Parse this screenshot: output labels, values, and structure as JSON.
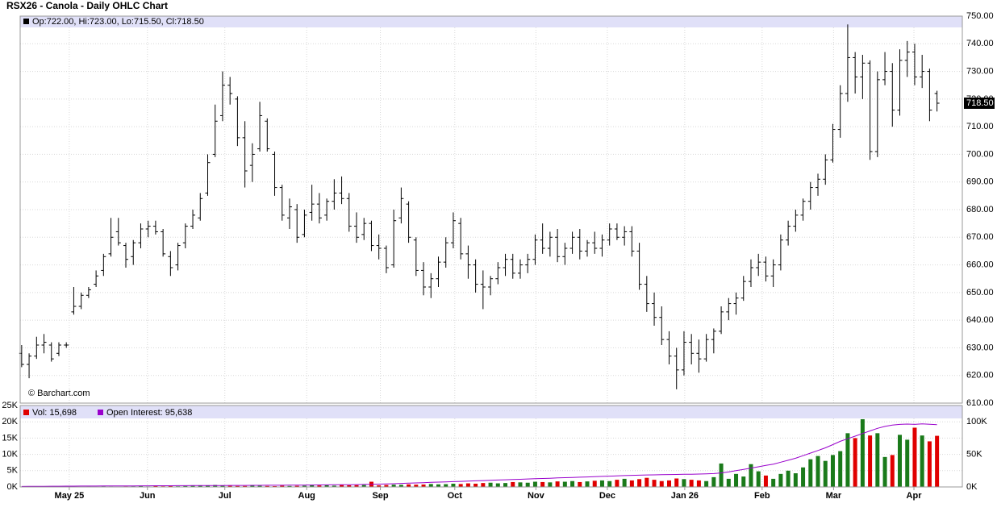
{
  "chart_data": [
    {
      "type": "ohlc",
      "title": "RSX26 - Canola - Daily OHLC Chart",
      "legend": "Op:722.00, Hi:723.00, Lo:715.50, Cl:718.50",
      "last_label": "718.50",
      "credit": "© Barchart.com",
      "color": "#000000",
      "xlim": [
        -0.2,
        126.4
      ],
      "ylim": [
        610,
        750
      ],
      "grid": true,
      "yticks": [
        {
          "value": 610,
          "label": "610.00"
        },
        {
          "value": 620,
          "label": "620.00"
        },
        {
          "value": 630,
          "label": "630.00"
        },
        {
          "value": 640,
          "label": "640.00"
        },
        {
          "value": 650,
          "label": "650.00"
        },
        {
          "value": 660,
          "label": "660.00"
        },
        {
          "value": 670,
          "label": "670.00"
        },
        {
          "value": 680,
          "label": "680.00"
        },
        {
          "value": 690,
          "label": "690.00"
        },
        {
          "value": 700,
          "label": "700.00"
        },
        {
          "value": 710,
          "label": "710.00"
        },
        {
          "value": 720,
          "label": "720.00"
        },
        {
          "value": 730,
          "label": "730.00"
        },
        {
          "value": 740,
          "label": "740.00"
        },
        {
          "value": 750,
          "label": "750.00"
        }
      ],
      "ohlc": [
        [
          628,
          631,
          623,
          624
        ],
        [
          624,
          628,
          619,
          627
        ],
        [
          627,
          634,
          626,
          631
        ],
        [
          631,
          635,
          628,
          632
        ],
        [
          631,
          632,
          625,
          626
        ],
        [
          628,
          632,
          627,
          631
        ],
        [
          631,
          632,
          630,
          631
        ],
        [
          643,
          652,
          642,
          645
        ],
        [
          645,
          650,
          644,
          649
        ],
        [
          649,
          652,
          648,
          651
        ],
        [
          653,
          658,
          652,
          656
        ],
        [
          658,
          664,
          656,
          663
        ],
        [
          664,
          677,
          663,
          670
        ],
        [
          672,
          677,
          667,
          668
        ],
        [
          667,
          668,
          659,
          662
        ],
        [
          663,
          669,
          660,
          668
        ],
        [
          668,
          675,
          666,
          673
        ],
        [
          673,
          676,
          670,
          674
        ],
        [
          674,
          676,
          671,
          672
        ],
        [
          672,
          673,
          663,
          664
        ],
        [
          663,
          665,
          656,
          659
        ],
        [
          660,
          668,
          658,
          667
        ],
        [
          668,
          675,
          666,
          674
        ],
        [
          674,
          680,
          673,
          678
        ],
        [
          677,
          686,
          676,
          684
        ],
        [
          686,
          700,
          685,
          697
        ],
        [
          700,
          718,
          699,
          712
        ],
        [
          714,
          730,
          712,
          725
        ],
        [
          725,
          728,
          718,
          722
        ],
        [
          720,
          721,
          703,
          706
        ],
        [
          706,
          712,
          688,
          694
        ],
        [
          696,
          704,
          690,
          700
        ],
        [
          702,
          719,
          701,
          714
        ],
        [
          712,
          713,
          701,
          702
        ],
        [
          700,
          701,
          685,
          688
        ],
        [
          688,
          689,
          676,
          678
        ],
        [
          677,
          684,
          673,
          681
        ],
        [
          680,
          682,
          668,
          670
        ],
        [
          671,
          680,
          670,
          678
        ],
        [
          679,
          689,
          676,
          682
        ],
        [
          682,
          686,
          675,
          677
        ],
        [
          678,
          684,
          676,
          683
        ],
        [
          683,
          691,
          680,
          686
        ],
        [
          686,
          692,
          682,
          684
        ],
        [
          684,
          686,
          672,
          674
        ],
        [
          674,
          679,
          668,
          670
        ],
        [
          671,
          677,
          669,
          675
        ],
        [
          675,
          676,
          665,
          667
        ],
        [
          667,
          671,
          662,
          666
        ],
        [
          666,
          667,
          657,
          659
        ],
        [
          660,
          680,
          659,
          676
        ],
        [
          677,
          688,
          675,
          684
        ],
        [
          682,
          683,
          668,
          670
        ],
        [
          669,
          670,
          656,
          658
        ],
        [
          658,
          661,
          649,
          652
        ],
        [
          652,
          657,
          648,
          655
        ],
        [
          655,
          663,
          652,
          661
        ],
        [
          661,
          670,
          659,
          668
        ],
        [
          668,
          679,
          666,
          676
        ],
        [
          675,
          677,
          662,
          664
        ],
        [
          664,
          667,
          655,
          660
        ],
        [
          660,
          662,
          650,
          653
        ],
        [
          653,
          658,
          644,
          652
        ],
        [
          652,
          656,
          649,
          655
        ],
        [
          655,
          661,
          653,
          659
        ],
        [
          659,
          664,
          656,
          662
        ],
        [
          662,
          664,
          655,
          657
        ],
        [
          657,
          662,
          655,
          660
        ],
        [
          660,
          664,
          657,
          662
        ],
        [
          662,
          671,
          660,
          669
        ],
        [
          669,
          675,
          664,
          666
        ],
        [
          666,
          672,
          663,
          670
        ],
        [
          670,
          673,
          661,
          663
        ],
        [
          663,
          668,
          660,
          666
        ],
        [
          666,
          672,
          664,
          670
        ],
        [
          670,
          673,
          662,
          665
        ],
        [
          665,
          669,
          663,
          668
        ],
        [
          668,
          672,
          664,
          666
        ],
        [
          666,
          671,
          663,
          669
        ],
        [
          669,
          675,
          667,
          673
        ],
        [
          673,
          675,
          669,
          670
        ],
        [
          670,
          674,
          667,
          672
        ],
        [
          672,
          674,
          663,
          665
        ],
        [
          665,
          668,
          651,
          653
        ],
        [
          653,
          656,
          643,
          646
        ],
        [
          646,
          650,
          638,
          641
        ],
        [
          641,
          645,
          631,
          633
        ],
        [
          633,
          636,
          624,
          627
        ],
        [
          627,
          630,
          615,
          622
        ],
        [
          622,
          636,
          620,
          632
        ],
        [
          632,
          635,
          624,
          628
        ],
        [
          628,
          633,
          621,
          626
        ],
        [
          626,
          635,
          625,
          633
        ],
        [
          633,
          637,
          628,
          636
        ],
        [
          636,
          645,
          635,
          643
        ],
        [
          643,
          648,
          640,
          646
        ],
        [
          646,
          650,
          642,
          648
        ],
        [
          648,
          656,
          647,
          654
        ],
        [
          654,
          662,
          652,
          659
        ],
        [
          659,
          664,
          656,
          661
        ],
        [
          661,
          663,
          654,
          656
        ],
        [
          656,
          662,
          652,
          660
        ],
        [
          660,
          671,
          658,
          669
        ],
        [
          669,
          676,
          667,
          674
        ],
        [
          674,
          680,
          672,
          678
        ],
        [
          678,
          684,
          676,
          683
        ],
        [
          683,
          690,
          680,
          688
        ],
        [
          688,
          693,
          685,
          691
        ],
        [
          691,
          700,
          689,
          698
        ],
        [
          698,
          711,
          697,
          709
        ],
        [
          709,
          725,
          706,
          722
        ],
        [
          722,
          747,
          719,
          735
        ],
        [
          735,
          737,
          722,
          728
        ],
        [
          728,
          736,
          720,
          733
        ],
        [
          733,
          734,
          698,
          701
        ],
        [
          701,
          730,
          699,
          727
        ],
        [
          727,
          737,
          725,
          730
        ],
        [
          730,
          733,
          710,
          716
        ],
        [
          716,
          738,
          714,
          734
        ],
        [
          734,
          741,
          728,
          737
        ],
        [
          737,
          740,
          725,
          728
        ],
        [
          728,
          736,
          724,
          730
        ],
        [
          730,
          731,
          712,
          716
        ],
        [
          722,
          723,
          715.5,
          718.5
        ]
      ]
    },
    {
      "type": "bar",
      "xlim": [
        -0.2,
        126.4
      ],
      "ylim": [
        0,
        25000
      ],
      "y2lim": [
        0,
        125000
      ],
      "grid": true,
      "xticks": [
        {
          "value": 6.4,
          "label": "May 25"
        },
        {
          "value": 16.9,
          "label": "Jun"
        },
        {
          "value": 27.3,
          "label": "Jul"
        },
        {
          "value": 38.3,
          "label": "Aug"
        },
        {
          "value": 48.2,
          "label": "Sep"
        },
        {
          "value": 58.2,
          "label": "Oct"
        },
        {
          "value": 69.1,
          "label": "Nov"
        },
        {
          "value": 78.7,
          "label": "Dec"
        },
        {
          "value": 89.1,
          "label": "Jan 26"
        },
        {
          "value": 99.5,
          "label": "Feb"
        },
        {
          "value": 109.1,
          "label": "Mar"
        },
        {
          "value": 119.9,
          "label": "Apr"
        }
      ],
      "yticks": [
        {
          "value": 0,
          "label": "0K"
        },
        {
          "value": 5000,
          "label": "5K"
        },
        {
          "value": 10000,
          "label": "10K"
        },
        {
          "value": 15000,
          "label": "15K"
        },
        {
          "value": 20000,
          "label": "20K"
        },
        {
          "value": 25000,
          "label": "25K"
        }
      ],
      "y2ticks": [
        {
          "value": 0,
          "label": "0K"
        },
        {
          "value": 50000,
          "label": "50K"
        },
        {
          "value": 100000,
          "label": "100K"
        }
      ],
      "series": [
        {
          "name": "Vol: 15,698",
          "color": "#e00000",
          "up_color": "#1a7a1a",
          "down_color": "#e00000",
          "values": [
            50,
            80,
            60,
            40,
            100,
            120,
            90,
            60,
            80,
            150,
            100,
            200,
            150,
            120,
            180,
            200,
            250,
            150,
            300,
            200,
            250,
            200,
            300,
            350,
            400,
            500,
            600,
            400,
            350,
            300,
            300,
            400,
            350,
            300,
            250,
            400,
            300,
            350,
            400,
            500,
            450,
            500,
            400,
            600,
            500,
            550,
            600,
            1600,
            500,
            600,
            700,
            650,
            800,
            700,
            750,
            900,
            800,
            850,
            1000,
            900,
            1100,
            1000,
            1200,
            1300,
            1100,
            1200,
            1500,
            1400,
            1300,
            1600,
            1500,
            1400,
            1700,
            1600,
            1800,
            1500,
            1700,
            1900,
            2000,
            1800,
            2200,
            2500,
            2000,
            2400,
            2800,
            2200,
            1800,
            2000,
            2600,
            2400,
            2200,
            2000,
            1800,
            3000,
            7200,
            2500,
            4000,
            3200,
            7000,
            4800,
            3500,
            2500,
            4000,
            5000,
            4200,
            6000,
            8500,
            9500,
            8000,
            9800,
            11000,
            16500,
            15000,
            20800,
            15800,
            16500,
            9200,
            9800,
            16000,
            14500,
            18200,
            15800,
            14000,
            15698
          ]
        },
        {
          "name": "Open Interest: 95,638",
          "color": "#9900cc",
          "axis": "y2",
          "values": [
            800,
            900,
            1000,
            1050,
            1100,
            1150,
            1200,
            1250,
            1300,
            1350,
            1400,
            1450,
            1500,
            1550,
            1600,
            1650,
            1700,
            1750,
            1800,
            1850,
            1900,
            1950,
            2000,
            2050,
            2100,
            2150,
            2200,
            2250,
            2300,
            2350,
            2400,
            2450,
            2500,
            2550,
            2600,
            2650,
            2700,
            2800,
            2900,
            3000,
            3100,
            3200,
            3300,
            3400,
            3500,
            3600,
            3800,
            4000,
            4300,
            4600,
            5000,
            5400,
            5800,
            6200,
            6600,
            7000,
            7400,
            7800,
            8200,
            8600,
            9000,
            9400,
            9800,
            10200,
            10600,
            11000,
            11400,
            11800,
            12200,
            12600,
            13000,
            13400,
            13800,
            14200,
            14600,
            15000,
            15400,
            15800,
            16200,
            16600,
            17000,
            17400,
            17800,
            18100,
            18400,
            18600,
            18800,
            19000,
            19200,
            19400,
            19600,
            19800,
            20000,
            20500,
            21500,
            23000,
            25000,
            27000,
            29000,
            31000,
            33000,
            35000,
            38000,
            41000,
            44000,
            48000,
            52000,
            56000,
            60000,
            65000,
            70000,
            74000,
            78000,
            82000,
            86000,
            90000,
            93000,
            95000,
            96000,
            96500,
            96000,
            96800,
            96200,
            95638
          ]
        }
      ]
    }
  ]
}
